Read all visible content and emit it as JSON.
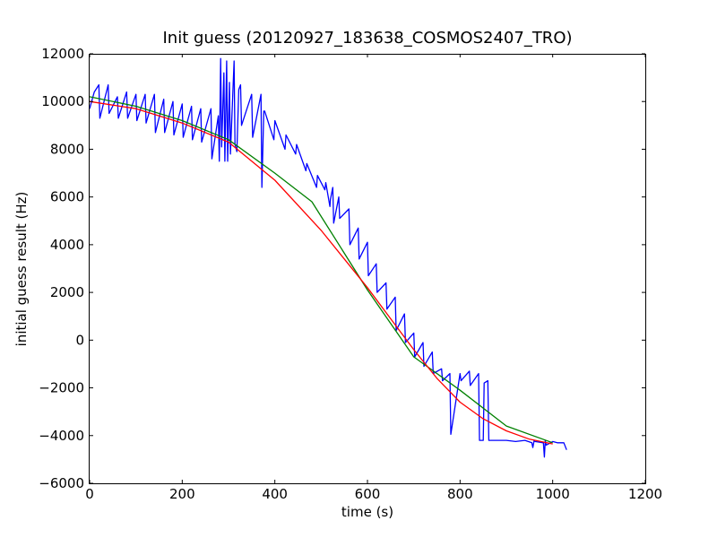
{
  "chart_data": {
    "type": "line",
    "title": "Init guess (20120927_183638_COSMOS2407_TRO)",
    "xlabel": "time (s)",
    "ylabel": "initial guess result (Hz)",
    "xlim": [
      0,
      1200
    ],
    "ylim": [
      -6000,
      12000
    ],
    "xticks": [
      0,
      200,
      400,
      600,
      800,
      1000,
      1200
    ],
    "yticks": [
      -6000,
      -4000,
      -2000,
      0,
      2000,
      4000,
      6000,
      8000,
      10000,
      12000
    ],
    "xtick_labels": [
      "0",
      "200",
      "400",
      "600",
      "800",
      "1000",
      "1200"
    ],
    "ytick_labels": [
      "−6000",
      "−4000",
      "−2000",
      "0",
      "2000",
      "4000",
      "6000",
      "8000",
      "10000",
      "12000"
    ],
    "grid": false,
    "legend": "none",
    "series": [
      {
        "color": "#0000ff",
        "x": [
          0,
          10,
          20,
          22,
          40,
          42,
          60,
          62,
          80,
          82,
          100,
          102,
          120,
          122,
          140,
          142,
          160,
          162,
          180,
          182,
          200,
          202,
          220,
          222,
          240,
          242,
          262,
          264,
          278,
          280,
          283,
          285,
          290,
          292,
          296,
          298,
          302,
          304,
          312,
          314,
          318,
          322,
          326,
          328,
          350,
          352,
          370,
          372,
          376,
          378,
          398,
          400,
          422,
          424,
          445,
          447,
          467,
          469,
          490,
          492,
          508,
          510,
          519,
          520,
          525,
          527,
          538,
          540,
          560,
          562,
          580,
          582,
          600,
          602,
          619,
          621,
          640,
          642,
          660,
          662,
          680,
          682,
          700,
          702,
          720,
          722,
          740,
          742,
          760,
          762,
          778,
          780,
          800,
          802,
          820,
          822,
          840,
          842,
          850,
          852,
          860,
          862,
          880,
          900,
          920,
          940,
          955,
          957,
          960,
          962,
          980,
          982,
          984,
          986,
          1000,
          1010,
          1020,
          1024,
          1030
        ],
        "y": [
          9700,
          10400,
          10700,
          9300,
          10700,
          9500,
          10200,
          9300,
          10400,
          9300,
          10300,
          9200,
          10300,
          9100,
          10300,
          8700,
          10100,
          8700,
          10000,
          8600,
          9900,
          8500,
          9800,
          8400,
          9700,
          8300,
          9700,
          7600,
          9400,
          7500,
          11800,
          8100,
          11200,
          7500,
          11700,
          7500,
          10800,
          7800,
          11700,
          8200,
          7900,
          10500,
          10700,
          9000,
          10300,
          8500,
          10300,
          6400,
          9600,
          9600,
          8400,
          9200,
          8000,
          8600,
          7800,
          8200,
          7100,
          7400,
          6400,
          6900,
          6300,
          6600,
          5600,
          5900,
          6400,
          4900,
          6000,
          5100,
          5500,
          4000,
          4700,
          3400,
          4100,
          2700,
          3200,
          2000,
          2400,
          1300,
          1800,
          400,
          1100,
          -100,
          300,
          -700,
          -100,
          -1100,
          -500,
          -1400,
          -1200,
          -1700,
          -1400,
          -3950,
          -1400,
          -1700,
          -1300,
          -1900,
          -1400,
          -4200,
          -4200,
          -1800,
          -1700,
          -4200,
          -4200,
          -4200,
          -4250,
          -4200,
          -4300,
          -4500,
          -4200,
          -4250,
          -4300,
          -4900,
          -4200,
          -4400,
          -4250,
          -4300,
          -4300,
          -4300,
          -4600
        ]
      },
      {
        "color": "#008000",
        "x": [
          0,
          100,
          200,
          300,
          400,
          480,
          600,
          700,
          800,
          900,
          1000
        ],
        "y": [
          10200,
          9800,
          9200,
          8400,
          7000,
          5800,
          2100,
          -700,
          -2100,
          -3600,
          -4300
        ]
      },
      {
        "color": "#ff0000",
        "x": [
          0,
          100,
          200,
          300,
          400,
          500,
          600,
          650,
          700,
          750,
          800,
          850,
          900,
          950,
          1000
        ],
        "y": [
          10000,
          9700,
          9100,
          8300,
          6700,
          4600,
          2200,
          900,
          -400,
          -1600,
          -2600,
          -3300,
          -3800,
          -4150,
          -4350
        ]
      }
    ]
  }
}
